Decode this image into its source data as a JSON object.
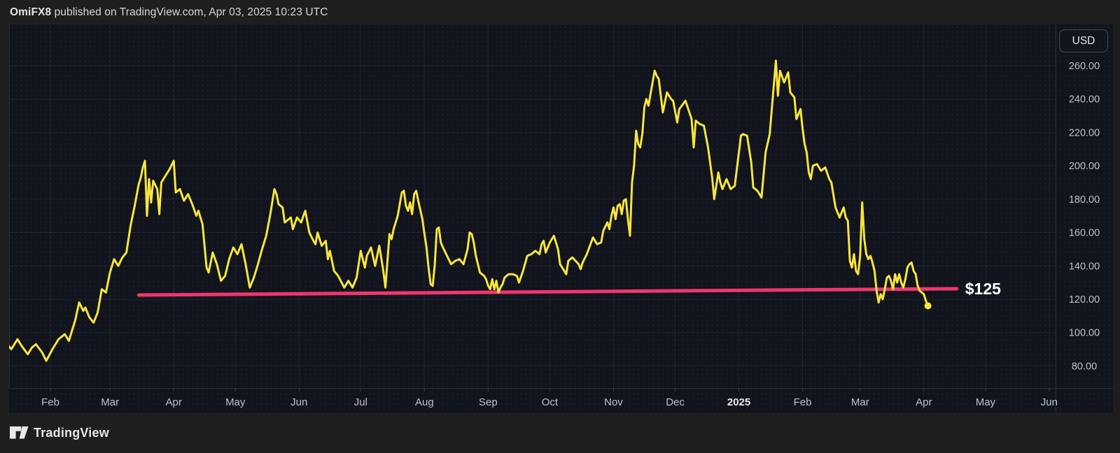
{
  "header": {
    "author": "OmiFX8",
    "attribution": " published on TradingView.com, Apr 03, 2025 10:23 UTC"
  },
  "footer": {
    "brand": "TradingView"
  },
  "price_axis_button": {
    "label": "USD"
  },
  "colors": {
    "background": "#11141c",
    "frame": "#1e1e1e",
    "grid": "#20debug",
    "grid_line": "rgba(160,172,200,0.10)",
    "separator": "#2a2e39",
    "tick": "#3c4150",
    "line": "#f7e53c",
    "trend": "#f0366e",
    "axis_text": "#bfc2cb",
    "axis_text_bright": "#e9eaee",
    "label_white": "#ffffff"
  },
  "chart_data": {
    "type": "line",
    "currency": "USD",
    "grid": true,
    "legend_position": "none",
    "ylabel": "USD",
    "price_ticks": [
      {
        "v": 260,
        "label": "260.00"
      },
      {
        "v": 240,
        "label": "240.00"
      },
      {
        "v": 220,
        "label": "220.00"
      },
      {
        "v": 200,
        "label": "200.00"
      },
      {
        "v": 180,
        "label": "180.00"
      },
      {
        "v": 160,
        "label": "160.00"
      },
      {
        "v": 140,
        "label": "140.00"
      },
      {
        "v": 120,
        "label": "120.00"
      },
      {
        "v": 100,
        "label": "100.00"
      },
      {
        "v": 80,
        "label": "80.00"
      }
    ],
    "ylim": [
      66,
      285
    ],
    "x_ticks": [
      {
        "d": "2024-02-01",
        "label": "Feb"
      },
      {
        "d": "2024-03-01",
        "label": "Mar"
      },
      {
        "d": "2024-04-01",
        "label": "Apr"
      },
      {
        "d": "2024-05-01",
        "label": "May"
      },
      {
        "d": "2024-06-01",
        "label": "Jun"
      },
      {
        "d": "2024-07-01",
        "label": "Jul"
      },
      {
        "d": "2024-08-01",
        "label": "Aug"
      },
      {
        "d": "2024-09-01",
        "label": "Sep"
      },
      {
        "d": "2024-10-01",
        "label": "Oct"
      },
      {
        "d": "2024-11-01",
        "label": "Nov"
      },
      {
        "d": "2024-12-01",
        "label": "Dec"
      },
      {
        "d": "2025-01-01",
        "label": "2025",
        "bold": true
      },
      {
        "d": "2025-02-01",
        "label": "Feb"
      },
      {
        "d": "2025-03-01",
        "label": "Mar"
      },
      {
        "d": "2025-04-01",
        "label": "Apr"
      },
      {
        "d": "2025-05-01",
        "label": "May"
      },
      {
        "d": "2025-06-01",
        "label": "Jun"
      }
    ],
    "trendline": {
      "from": {
        "d": "2024-03-15",
        "price": 122.5
      },
      "to": {
        "d": "2025-04-17",
        "price": 126.3
      },
      "label": "$125"
    },
    "points": [
      [
        "2024-01-11",
        93
      ],
      [
        "2024-01-13",
        90
      ],
      [
        "2024-01-16",
        96
      ],
      [
        "2024-01-18",
        92
      ],
      [
        "2024-01-21",
        87
      ],
      [
        "2024-01-23",
        91
      ],
      [
        "2024-01-25",
        93
      ],
      [
        "2024-01-28",
        88
      ],
      [
        "2024-01-30",
        83
      ],
      [
        "2024-02-02",
        90
      ],
      [
        "2024-02-05",
        96
      ],
      [
        "2024-02-08",
        99
      ],
      [
        "2024-02-10",
        95
      ],
      [
        "2024-02-13",
        107
      ],
      [
        "2024-02-15",
        118
      ],
      [
        "2024-02-17",
        113
      ],
      [
        "2024-02-18",
        115
      ],
      [
        "2024-02-20",
        109
      ],
      [
        "2024-02-22",
        106
      ],
      [
        "2024-02-24",
        112
      ],
      [
        "2024-02-26",
        126
      ],
      [
        "2024-02-28",
        124
      ],
      [
        "2024-03-01",
        136
      ],
      [
        "2024-03-03",
        144
      ],
      [
        "2024-03-05",
        140
      ],
      [
        "2024-03-07",
        145
      ],
      [
        "2024-03-09",
        148
      ],
      [
        "2024-03-11",
        164
      ],
      [
        "2024-03-13",
        176
      ],
      [
        "2024-03-15",
        189
      ],
      [
        "2024-03-16",
        193
      ],
      [
        "2024-03-17",
        199
      ],
      [
        "2024-03-18",
        203
      ],
      [
        "2024-03-19",
        170
      ],
      [
        "2024-03-20",
        192
      ],
      [
        "2024-03-21",
        178
      ],
      [
        "2024-03-22",
        191
      ],
      [
        "2024-03-24",
        186
      ],
      [
        "2024-03-25",
        171
      ],
      [
        "2024-03-26",
        190
      ],
      [
        "2024-03-28",
        194
      ],
      [
        "2024-03-30",
        198
      ],
      [
        "2024-04-01",
        203
      ],
      [
        "2024-04-02",
        184
      ],
      [
        "2024-04-04",
        186
      ],
      [
        "2024-04-06",
        179
      ],
      [
        "2024-04-08",
        183
      ],
      [
        "2024-04-10",
        177
      ],
      [
        "2024-04-12",
        170
      ],
      [
        "2024-04-13",
        173
      ],
      [
        "2024-04-15",
        165
      ],
      [
        "2024-04-17",
        139
      ],
      [
        "2024-04-18",
        136
      ],
      [
        "2024-04-20",
        148
      ],
      [
        "2024-04-22",
        141
      ],
      [
        "2024-04-24",
        131
      ],
      [
        "2024-04-26",
        134
      ],
      [
        "2024-04-28",
        144
      ],
      [
        "2024-04-30",
        151
      ],
      [
        "2024-05-02",
        147
      ],
      [
        "2024-05-04",
        153
      ],
      [
        "2024-05-06",
        141
      ],
      [
        "2024-05-08",
        127
      ],
      [
        "2024-05-10",
        133
      ],
      [
        "2024-05-12",
        141
      ],
      [
        "2024-05-14",
        150
      ],
      [
        "2024-05-16",
        158
      ],
      [
        "2024-05-18",
        171
      ],
      [
        "2024-05-20",
        186
      ],
      [
        "2024-05-21",
        183
      ],
      [
        "2024-05-22",
        177
      ],
      [
        "2024-05-24",
        175
      ],
      [
        "2024-05-25",
        166
      ],
      [
        "2024-05-26",
        167
      ],
      [
        "2024-05-28",
        169
      ],
      [
        "2024-05-29",
        162
      ],
      [
        "2024-05-31",
        169
      ],
      [
        "2024-06-02",
        166
      ],
      [
        "2024-06-04",
        173
      ],
      [
        "2024-06-06",
        160
      ],
      [
        "2024-06-08",
        155
      ],
      [
        "2024-06-09",
        153
      ],
      [
        "2024-06-10",
        160
      ],
      [
        "2024-06-12",
        152
      ],
      [
        "2024-06-14",
        155
      ],
      [
        "2024-06-15",
        144
      ],
      [
        "2024-06-16",
        149
      ],
      [
        "2024-06-18",
        137
      ],
      [
        "2024-06-20",
        134
      ],
      [
        "2024-06-23",
        127
      ],
      [
        "2024-06-25",
        131
      ],
      [
        "2024-06-27",
        127
      ],
      [
        "2024-06-29",
        133
      ],
      [
        "2024-06-30",
        141
      ],
      [
        "2024-07-01",
        149
      ],
      [
        "2024-07-03",
        139
      ],
      [
        "2024-07-04",
        146
      ],
      [
        "2024-07-06",
        151
      ],
      [
        "2024-07-08",
        140
      ],
      [
        "2024-07-10",
        152
      ],
      [
        "2024-07-12",
        137
      ],
      [
        "2024-07-13",
        127
      ],
      [
        "2024-07-14",
        143
      ],
      [
        "2024-07-15",
        159
      ],
      [
        "2024-07-16",
        156
      ],
      [
        "2024-07-17",
        162
      ],
      [
        "2024-07-19",
        170
      ],
      [
        "2024-07-20",
        177
      ],
      [
        "2024-07-21",
        184
      ],
      [
        "2024-07-22",
        185
      ],
      [
        "2024-07-23",
        176
      ],
      [
        "2024-07-24",
        173
      ],
      [
        "2024-07-25",
        178
      ],
      [
        "2024-07-26",
        171
      ],
      [
        "2024-07-27",
        183
      ],
      [
        "2024-07-28",
        185
      ],
      [
        "2024-07-29",
        179
      ],
      [
        "2024-07-31",
        168
      ],
      [
        "2024-08-01",
        159
      ],
      [
        "2024-08-02",
        151
      ],
      [
        "2024-08-03",
        139
      ],
      [
        "2024-08-04",
        129
      ],
      [
        "2024-08-05",
        128
      ],
      [
        "2024-08-06",
        140
      ],
      [
        "2024-08-07",
        162
      ],
      [
        "2024-08-08",
        163
      ],
      [
        "2024-08-09",
        154
      ],
      [
        "2024-08-10",
        151
      ],
      [
        "2024-08-12",
        146
      ],
      [
        "2024-08-14",
        141
      ],
      [
        "2024-08-16",
        143
      ],
      [
        "2024-08-18",
        144
      ],
      [
        "2024-08-20",
        141
      ],
      [
        "2024-08-22",
        150
      ],
      [
        "2024-08-23",
        160
      ],
      [
        "2024-08-24",
        159
      ],
      [
        "2024-08-25",
        154
      ],
      [
        "2024-08-26",
        146
      ],
      [
        "2024-08-28",
        136
      ],
      [
        "2024-08-30",
        134
      ],
      [
        "2024-08-31",
        132
      ],
      [
        "2024-09-01",
        128
      ],
      [
        "2024-09-02",
        126
      ],
      [
        "2024-09-03",
        132
      ],
      [
        "2024-09-04",
        126
      ],
      [
        "2024-09-05",
        131
      ],
      [
        "2024-09-06",
        124
      ],
      [
        "2024-09-07",
        127
      ],
      [
        "2024-09-08",
        129
      ],
      [
        "2024-09-09",
        133
      ],
      [
        "2024-09-11",
        135
      ],
      [
        "2024-09-13",
        135
      ],
      [
        "2024-09-15",
        134
      ],
      [
        "2024-09-16",
        130
      ],
      [
        "2024-09-18",
        137
      ],
      [
        "2024-09-20",
        146
      ],
      [
        "2024-09-22",
        147
      ],
      [
        "2024-09-24",
        149
      ],
      [
        "2024-09-26",
        147
      ],
      [
        "2024-09-27",
        153
      ],
      [
        "2024-09-28",
        155
      ],
      [
        "2024-09-29",
        148
      ],
      [
        "2024-10-01",
        154
      ],
      [
        "2024-10-03",
        158
      ],
      [
        "2024-10-05",
        150
      ],
      [
        "2024-10-06",
        141
      ],
      [
        "2024-10-08",
        137
      ],
      [
        "2024-10-09",
        135
      ],
      [
        "2024-10-10",
        143
      ],
      [
        "2024-10-12",
        145
      ],
      [
        "2024-10-15",
        141
      ],
      [
        "2024-10-16",
        138
      ],
      [
        "2024-10-17",
        142
      ],
      [
        "2024-10-19",
        147
      ],
      [
        "2024-10-22",
        157
      ],
      [
        "2024-10-24",
        153
      ],
      [
        "2024-10-26",
        154
      ],
      [
        "2024-10-27",
        161
      ],
      [
        "2024-10-29",
        166
      ],
      [
        "2024-10-30",
        162
      ],
      [
        "2024-10-31",
        170
      ],
      [
        "2024-11-01",
        175
      ],
      [
        "2024-11-02",
        168
      ],
      [
        "2024-11-03",
        176
      ],
      [
        "2024-11-04",
        177
      ],
      [
        "2024-11-05",
        171
      ],
      [
        "2024-11-06",
        179
      ],
      [
        "2024-11-07",
        180
      ],
      [
        "2024-11-08",
        168
      ],
      [
        "2024-11-09",
        158
      ],
      [
        "2024-11-10",
        190
      ],
      [
        "2024-11-11",
        200
      ],
      [
        "2024-11-12",
        221
      ],
      [
        "2024-11-13",
        213
      ],
      [
        "2024-11-14",
        211
      ],
      [
        "2024-11-15",
        219
      ],
      [
        "2024-11-16",
        235
      ],
      [
        "2024-11-17",
        240
      ],
      [
        "2024-11-18",
        236
      ],
      [
        "2024-11-21",
        257
      ],
      [
        "2024-11-22",
        254
      ],
      [
        "2024-11-23",
        252
      ],
      [
        "2024-11-25",
        232
      ],
      [
        "2024-11-27",
        244
      ],
      [
        "2024-11-29",
        240
      ],
      [
        "2024-11-30",
        239
      ],
      [
        "2024-12-02",
        226
      ],
      [
        "2024-12-03",
        234
      ],
      [
        "2024-12-06",
        239
      ],
      [
        "2024-12-09",
        228
      ],
      [
        "2024-12-10",
        211
      ],
      [
        "2024-12-11",
        227
      ],
      [
        "2024-12-13",
        225
      ],
      [
        "2024-12-15",
        224
      ],
      [
        "2024-12-17",
        211
      ],
      [
        "2024-12-19",
        193
      ],
      [
        "2024-12-20",
        180
      ],
      [
        "2024-12-22",
        196
      ],
      [
        "2024-12-23",
        190
      ],
      [
        "2024-12-24",
        186
      ],
      [
        "2024-12-26",
        192
      ],
      [
        "2024-12-28",
        186
      ],
      [
        "2024-12-30",
        188
      ],
      [
        "2025-01-02",
        218
      ],
      [
        "2025-01-03",
        219
      ],
      [
        "2025-01-05",
        218
      ],
      [
        "2025-01-07",
        202
      ],
      [
        "2025-01-08",
        187
      ],
      [
        "2025-01-10",
        185
      ],
      [
        "2025-01-12",
        181
      ],
      [
        "2025-01-14",
        208
      ],
      [
        "2025-01-16",
        219
      ],
      [
        "2025-01-19",
        263
      ],
      [
        "2025-01-20",
        242
      ],
      [
        "2025-01-21",
        257
      ],
      [
        "2025-01-23",
        250
      ],
      [
        "2025-01-25",
        256
      ],
      [
        "2025-01-26",
        244
      ],
      [
        "2025-01-28",
        241
      ],
      [
        "2025-01-29",
        228
      ],
      [
        "2025-01-31",
        234
      ],
      [
        "2025-02-01",
        222
      ],
      [
        "2025-02-02",
        213
      ],
      [
        "2025-02-03",
        208
      ],
      [
        "2025-02-04",
        196
      ],
      [
        "2025-02-05",
        192
      ],
      [
        "2025-02-06",
        200
      ],
      [
        "2025-02-08",
        201
      ],
      [
        "2025-02-10",
        197
      ],
      [
        "2025-02-12",
        199
      ],
      [
        "2025-02-14",
        192
      ],
      [
        "2025-02-15",
        190
      ],
      [
        "2025-02-17",
        175
      ],
      [
        "2025-02-19",
        169
      ],
      [
        "2025-02-21",
        175
      ],
      [
        "2025-02-22",
        169
      ],
      [
        "2025-02-23",
        167
      ],
      [
        "2025-02-24",
        143
      ],
      [
        "2025-02-25",
        139
      ],
      [
        "2025-02-26",
        147
      ],
      [
        "2025-02-27",
        137
      ],
      [
        "2025-02-28",
        135
      ],
      [
        "2025-03-01",
        146
      ],
      [
        "2025-03-02",
        178
      ],
      [
        "2025-03-03",
        156
      ],
      [
        "2025-03-04",
        147
      ],
      [
        "2025-03-05",
        144
      ],
      [
        "2025-03-06",
        146
      ],
      [
        "2025-03-07",
        142
      ],
      [
        "2025-03-08",
        137
      ],
      [
        "2025-03-09",
        125
      ],
      [
        "2025-03-10",
        118
      ],
      [
        "2025-03-11",
        123
      ],
      [
        "2025-03-12",
        120
      ],
      [
        "2025-03-13",
        126
      ],
      [
        "2025-03-14",
        133
      ],
      [
        "2025-03-15",
        134
      ],
      [
        "2025-03-16",
        131
      ],
      [
        "2025-03-17",
        126
      ],
      [
        "2025-03-18",
        135
      ],
      [
        "2025-03-19",
        130
      ],
      [
        "2025-03-20",
        135
      ],
      [
        "2025-03-21",
        130
      ],
      [
        "2025-03-22",
        127
      ],
      [
        "2025-03-23",
        132
      ],
      [
        "2025-03-24",
        139
      ],
      [
        "2025-03-25",
        141
      ],
      [
        "2025-03-26",
        142
      ],
      [
        "2025-03-27",
        137
      ],
      [
        "2025-03-28",
        135
      ],
      [
        "2025-03-29",
        128
      ],
      [
        "2025-03-30",
        125
      ],
      [
        "2025-03-31",
        124
      ],
      [
        "2025-04-01",
        123
      ],
      [
        "2025-04-02",
        119
      ],
      [
        "2025-04-03",
        116
      ]
    ],
    "last_value": 116
  }
}
